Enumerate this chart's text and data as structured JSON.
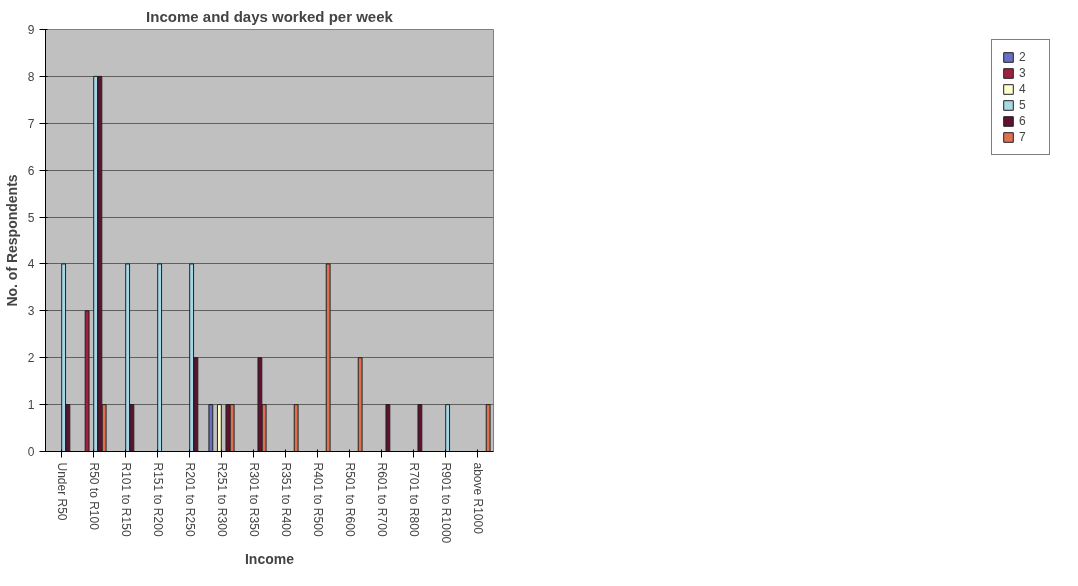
{
  "chart_data": {
    "type": "bar",
    "title": "Income and days worked per week",
    "xlabel": "Income",
    "ylabel": "No. of Respondents",
    "categories": [
      "Under R50",
      "R50 to R100",
      "R101 to R150",
      "R151 to R200",
      "R201 to R250",
      "R251 to R300",
      "R301 to R350",
      "R351 to R400",
      "R401 to R500",
      "R501 to R600",
      "R601 to R700",
      "R701 to R800",
      "R901 to R1000",
      "above R1000"
    ],
    "series": [
      {
        "name": "2",
        "color": "#6670c8",
        "values": [
          null,
          null,
          null,
          null,
          null,
          1,
          null,
          null,
          null,
          null,
          null,
          null,
          null,
          null
        ]
      },
      {
        "name": "3",
        "color": "#a02040",
        "values": [
          null,
          3,
          null,
          null,
          null,
          null,
          null,
          null,
          null,
          null,
          null,
          null,
          null,
          null
        ]
      },
      {
        "name": "4",
        "color": "#ffffcc",
        "values": [
          null,
          null,
          null,
          null,
          null,
          1,
          null,
          null,
          null,
          null,
          null,
          null,
          null,
          null
        ]
      },
      {
        "name": "5",
        "color": "#a6d8e8",
        "values": [
          4,
          8,
          4,
          4,
          4,
          null,
          null,
          null,
          null,
          null,
          null,
          null,
          1,
          null
        ]
      },
      {
        "name": "6",
        "color": "#601030",
        "values": [
          1,
          8,
          1,
          null,
          2,
          1,
          2,
          null,
          null,
          null,
          1,
          1,
          null,
          null
        ]
      },
      {
        "name": "7",
        "color": "#e07050",
        "values": [
          null,
          1,
          null,
          null,
          null,
          1,
          1,
          1,
          4,
          2,
          null,
          null,
          null,
          1
        ]
      }
    ],
    "ylim": [
      0,
      9
    ],
    "yticks": [
      0,
      1,
      2,
      3,
      4,
      5,
      6,
      7,
      8,
      9
    ],
    "grid": "y",
    "legend": "right"
  }
}
